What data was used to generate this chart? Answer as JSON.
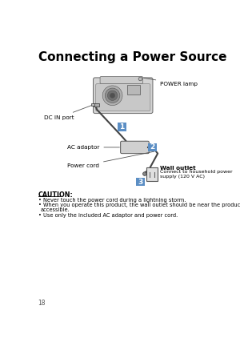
{
  "title": "Connecting a Power Source",
  "title_fontsize": 11,
  "page_number": "18",
  "bg_color": "#ffffff",
  "text_color": "#000000",
  "caution_title": "CAUTION:",
  "caution_bullets": [
    "Never touch the power cord during a lightning storm.",
    "When you operate this product, the wall outlet should be near the product and easily\n  accessible.",
    "Use only the included AC adaptor and power cord."
  ],
  "labels": {
    "power_lamp": "POWER lamp",
    "dc_in_port": "DC IN port",
    "ac_adaptor": "AC adaptor",
    "power_cord": "Power cord",
    "wall_outlet": "Wall outlet",
    "wall_outlet_sub": "Connect to household power\nsupply (120 V AC)"
  }
}
